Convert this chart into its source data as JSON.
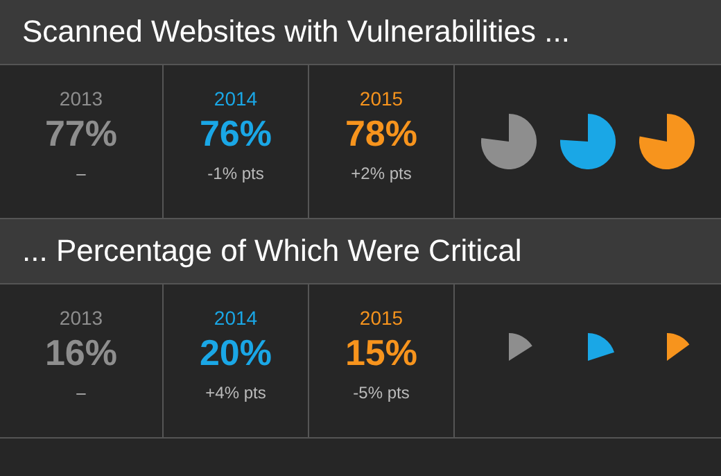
{
  "chart_data": [
    {
      "type": "other",
      "title": "Scanned Websites with Vulnerabilities ...",
      "categories": [
        "2013",
        "2014",
        "2015"
      ],
      "values": [
        77,
        76,
        78
      ],
      "value_labels": [
        "77%",
        "76%",
        "78%"
      ],
      "colors": [
        "#8e8e8e",
        "#1aa7e6",
        "#f7941d"
      ],
      "annotations": [
        "–",
        "-1% pts",
        "+2% pts"
      ]
    },
    {
      "type": "other",
      "title": "... Percentage of Which Were Critical",
      "categories": [
        "2013",
        "2014",
        "2015"
      ],
      "values": [
        16,
        20,
        15
      ],
      "value_labels": [
        "16%",
        "20%",
        "15%"
      ],
      "colors": [
        "#8e8e8e",
        "#1aa7e6",
        "#f7941d"
      ],
      "annotations": [
        "–",
        "+4% pts",
        "-5% pts"
      ]
    }
  ]
}
